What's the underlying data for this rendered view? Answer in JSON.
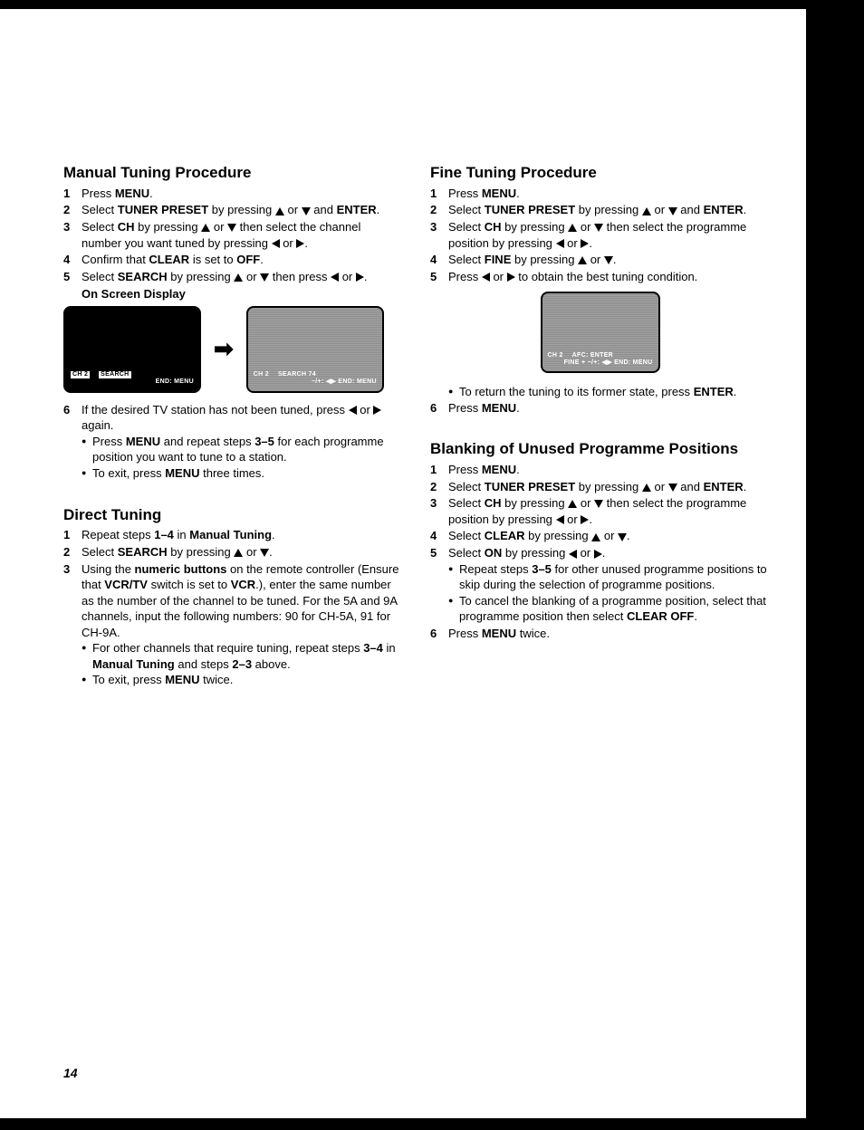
{
  "page_number": "14",
  "arrows": {
    "up": "▲",
    "down": "▼",
    "left": "◀",
    "right": "▶"
  },
  "left_column": {
    "sections": [
      {
        "title": "Manual Tuning Procedure",
        "steps": [
          {
            "n": "1",
            "parts": [
              "Press ",
              "MENU",
              "."
            ]
          },
          {
            "n": "2",
            "parts": [
              "Select ",
              "TUNER PRESET",
              " by pressing ",
              "UP",
              " or ",
              "DOWN",
              " and ",
              "ENTER",
              "."
            ]
          },
          {
            "n": "3",
            "parts": [
              "Select ",
              "CH",
              " by pressing ",
              "UP",
              " or ",
              "DOWN",
              " then select the channel number you want tuned by pressing ",
              "LEFT",
              " or ",
              "RIGHT",
              "."
            ]
          },
          {
            "n": "4",
            "parts": [
              "Confirm that ",
              "CLEAR",
              " is set to ",
              "OFF",
              "."
            ]
          },
          {
            "n": "5",
            "parts": [
              "Select ",
              "SEARCH",
              " by pressing ",
              "UP",
              " or ",
              "DOWN",
              " then press ",
              "LEFT",
              " or ",
              "RIGHT",
              "."
            ]
          }
        ],
        "sub_heading": "On Screen Display",
        "osd_left": {
          "line1_a": "CH 2",
          "line1_b": "SEARCH",
          "line2": "END: MENU"
        },
        "osd_right": {
          "line1_a": "CH 2",
          "line1_b": "SEARCH 74",
          "line2": "−/+: ◀▶  END: MENU"
        },
        "after_steps": [
          {
            "n": "6",
            "parts": [
              "If the desired TV station has not been tuned, press ",
              "LEFT",
              " or ",
              "RIGHT",
              " again."
            ],
            "bullets": [
              "Press MENU and repeat steps 3–5 for each programme position you want to tune to a station.",
              "To exit, press MENU three times."
            ]
          }
        ]
      },
      {
        "title": "Direct Tuning",
        "steps": [
          {
            "n": "1",
            "parts": [
              "Repeat steps ",
              "1–4",
              " in ",
              "Manual Tuning",
              "."
            ]
          },
          {
            "n": "2",
            "parts": [
              "Select ",
              "SEARCH",
              " by pressing ",
              "UP",
              " or ",
              "DOWN",
              "."
            ]
          },
          {
            "n": "3",
            "parts": [
              "Using the ",
              "numeric buttons",
              " on the remote controller (Ensure that ",
              "VCR/TV",
              " switch is set to ",
              "VCR",
              ".), enter the same number as the number of the channel to be tuned. For the 5A and 9A channels, input the following numbers: 90 for CH-5A, 91 for CH-9A."
            ],
            "bullets": [
              "For other channels that require tuning, repeat steps 3–4 in Manual Tuning and steps 2–3 above.",
              "To exit, press MENU twice."
            ]
          }
        ]
      }
    ]
  },
  "right_column": {
    "sections": [
      {
        "title": "Fine Tuning Procedure",
        "steps": [
          {
            "n": "1",
            "parts": [
              "Press ",
              "MENU",
              "."
            ]
          },
          {
            "n": "2",
            "parts": [
              "Select ",
              "TUNER PRESET",
              " by pressing ",
              "UP",
              " or ",
              "DOWN",
              " and ",
              "ENTER",
              "."
            ]
          },
          {
            "n": "3",
            "parts": [
              "Select ",
              "CH",
              " by pressing ",
              "UP",
              " or ",
              "DOWN",
              " then select the programme position by pressing ",
              "LEFT",
              " or ",
              "RIGHT",
              "."
            ]
          },
          {
            "n": "4",
            "parts": [
              "Select ",
              "FINE",
              " by pressing ",
              "UP",
              " or ",
              "DOWN",
              "."
            ]
          },
          {
            "n": "5",
            "parts": [
              "Press ",
              "LEFT",
              " or ",
              "RIGHT",
              " to obtain the best tuning condition."
            ]
          }
        ],
        "osd": {
          "line1_a": "CH 2",
          "line1_b": "AFC: ENTER",
          "line2": "FINE +   −/+: ◀▶  END: MENU"
        },
        "after_bullets": [
          "To return the tuning to its former state, press ENTER."
        ],
        "after_steps": [
          {
            "n": "6",
            "parts": [
              "Press ",
              "MENU",
              "."
            ]
          }
        ]
      },
      {
        "title": "Blanking of Unused Programme Positions",
        "steps": [
          {
            "n": "1",
            "parts": [
              "Press ",
              "MENU",
              "."
            ]
          },
          {
            "n": "2",
            "parts": [
              "Select ",
              "TUNER PRESET",
              " by pressing ",
              "UP",
              " or ",
              "DOWN",
              " and ",
              "ENTER",
              "."
            ]
          },
          {
            "n": "3",
            "parts": [
              "Select ",
              "CH",
              " by pressing ",
              "UP",
              " or ",
              "DOWN",
              " then select the programme position by pressing ",
              "LEFT",
              " or ",
              "RIGHT",
              "."
            ]
          },
          {
            "n": "4",
            "parts": [
              "Select ",
              "CLEAR",
              " by pressing ",
              "UP",
              " or ",
              "DOWN",
              "."
            ]
          },
          {
            "n": "5",
            "parts": [
              "Select ",
              "ON",
              " by pressing ",
              "LEFT",
              " or ",
              "RIGHT",
              "."
            ],
            "bullets": [
              "Repeat steps 3–5 for other unused programme positions to skip during the selection of programme positions.",
              "To cancel the blanking of a programme position, select that programme position then select CLEAR OFF."
            ]
          },
          {
            "n": "6",
            "parts": [
              "Press ",
              "MENU",
              " twice."
            ]
          }
        ]
      }
    ]
  }
}
